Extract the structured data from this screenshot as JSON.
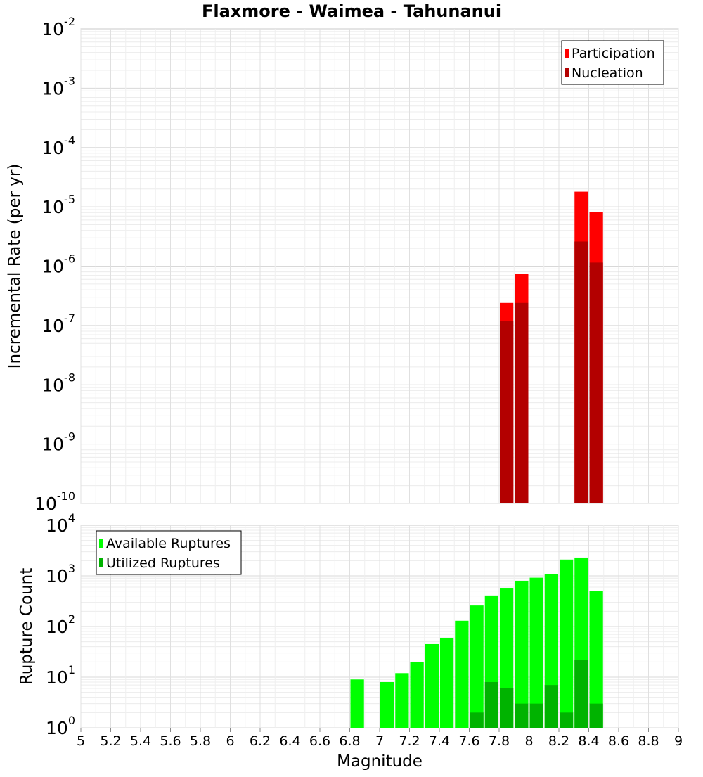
{
  "title": "Flaxmore - Waimea - Tahunanui",
  "x_axis": {
    "label": "Magnitude",
    "range": [
      5,
      9
    ],
    "tick_labels": [
      "5",
      "5.2",
      "5.4",
      "5.6",
      "5.8",
      "6",
      "6.2",
      "6.4",
      "6.6",
      "6.8",
      "7",
      "7.2",
      "7.4",
      "7.6",
      "7.8",
      "8",
      "8.2",
      "8.4",
      "8.6",
      "8.8",
      "9"
    ]
  },
  "chart_data": [
    {
      "type": "bar",
      "ylabel": "Incremental Rate (per yr)",
      "yscale": "log",
      "ylim": [
        1e-10,
        0.01
      ],
      "y_tick_exponents": [
        -10,
        -9,
        -8,
        -7,
        -6,
        -5,
        -4,
        -3,
        -2
      ],
      "grid": true,
      "legend_position": "top-right",
      "bin_width": 0.1,
      "series": [
        {
          "name": "Participation",
          "color": "#ff0000",
          "x": [
            7.85,
            7.95,
            8.35,
            8.45
          ],
          "values": [
            2.4e-07,
            7.5e-07,
            1.8e-05,
            8.2e-06
          ]
        },
        {
          "name": "Nucleation",
          "color": "#b30000",
          "x": [
            7.85,
            7.95,
            8.35,
            8.45
          ],
          "values": [
            1.2e-07,
            2.4e-07,
            2.6e-06,
            1.15e-06
          ]
        }
      ]
    },
    {
      "type": "bar",
      "ylabel": "Rupture Count",
      "yscale": "log",
      "ylim": [
        1,
        10000
      ],
      "y_tick_exponents": [
        0,
        1,
        2,
        3,
        4
      ],
      "grid": true,
      "legend_position": "top-left",
      "bin_width": 0.1,
      "series": [
        {
          "name": "Available Ruptures",
          "color": "#00ff00",
          "x": [
            6.85,
            7.05,
            7.15,
            7.25,
            7.35,
            7.45,
            7.55,
            7.65,
            7.75,
            7.85,
            7.95,
            8.05,
            8.15,
            8.25,
            8.35,
            8.45
          ],
          "values": [
            9,
            8,
            12,
            20,
            45,
            60,
            130,
            260,
            410,
            580,
            800,
            920,
            1100,
            2100,
            2300,
            500
          ]
        },
        {
          "name": "Utilized Ruptures",
          "color": "#00b300",
          "x": [
            7.65,
            7.75,
            7.85,
            7.95,
            8.05,
            8.15,
            8.25,
            8.35,
            8.45
          ],
          "values": [
            2,
            8,
            6,
            3,
            3,
            7,
            2,
            22,
            3
          ]
        }
      ]
    }
  ]
}
